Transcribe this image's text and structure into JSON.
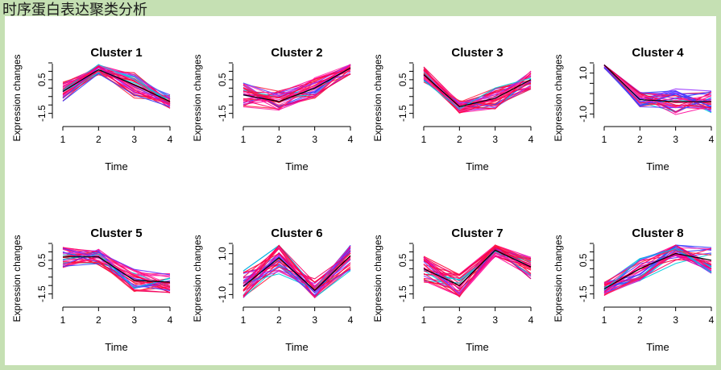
{
  "page_title": "时序蛋白表达聚类分析",
  "chart_data": [
    {
      "type": "line",
      "title": "Cluster 1",
      "xlabel": "Time",
      "ylabel": "Expression changes",
      "x": [
        1,
        2,
        3,
        4
      ],
      "xticks": [
        "1",
        "2",
        "3",
        "4"
      ],
      "yticks": [
        "-1.5",
        "0.5"
      ],
      "ytick_values": [
        -1.5,
        0.5
      ],
      "ylim": [
        -1.9,
        1.5
      ],
      "grid": false,
      "centroid": [
        -0.2,
        1.1,
        0.2,
        -0.8
      ],
      "spread": [
        0.9,
        0.4,
        1.0,
        0.5
      ]
    },
    {
      "type": "line",
      "title": "Cluster 2",
      "xlabel": "Time",
      "ylabel": "Expression changes",
      "x": [
        1,
        2,
        3,
        4
      ],
      "xticks": [
        "1",
        "2",
        "3",
        "4"
      ],
      "yticks": [
        "-1.5",
        "0.5"
      ],
      "ytick_values": [
        -1.5,
        0.5
      ],
      "ylim": [
        -1.9,
        1.5
      ],
      "grid": false,
      "centroid": [
        -0.4,
        -0.8,
        0.0,
        1.2
      ],
      "spread": [
        0.9,
        0.8,
        0.8,
        0.5
      ]
    },
    {
      "type": "line",
      "title": "Cluster 3",
      "xlabel": "Time",
      "ylabel": "Expression changes",
      "x": [
        1,
        2,
        3,
        4
      ],
      "xticks": [
        "1",
        "2",
        "3",
        "4"
      ],
      "yticks": [
        "-1.5",
        "0.5"
      ],
      "ytick_values": [
        -1.5,
        0.5
      ],
      "ylim": [
        -1.9,
        1.5
      ],
      "grid": false,
      "centroid": [
        0.8,
        -1.1,
        -0.6,
        0.5
      ],
      "spread": [
        0.6,
        0.5,
        0.8,
        0.7
      ]
    },
    {
      "type": "line",
      "title": "Cluster 4",
      "xlabel": "Time",
      "ylabel": "Expression changes",
      "x": [
        1,
        2,
        3,
        4
      ],
      "xticks": [
        "1",
        "2",
        "3",
        "4"
      ],
      "yticks": [
        "-1.0",
        "1.0"
      ],
      "ytick_values": [
        -1.0,
        1.0
      ],
      "ylim": [
        -1.3,
        1.5
      ],
      "grid": false,
      "centroid": [
        1.4,
        -0.3,
        -0.4,
        -0.4
      ],
      "spread": [
        0.2,
        0.5,
        0.8,
        0.7
      ]
    },
    {
      "type": "line",
      "title": "Cluster 5",
      "xlabel": "Time",
      "ylabel": "Expression changes",
      "x": [
        1,
        2,
        3,
        4
      ],
      "xticks": [
        "1",
        "2",
        "3",
        "4"
      ],
      "yticks": [
        "-1.5",
        "0.5"
      ],
      "ytick_values": [
        -1.5,
        0.5
      ],
      "ylim": [
        -1.9,
        1.5
      ],
      "grid": false,
      "centroid": [
        0.7,
        0.7,
        -0.7,
        -0.8
      ],
      "spread": [
        0.8,
        0.6,
        0.9,
        0.8
      ]
    },
    {
      "type": "line",
      "title": "Cluster 6",
      "xlabel": "Time",
      "ylabel": "Expression changes",
      "x": [
        1,
        2,
        3,
        4
      ],
      "xticks": [
        "1",
        "2",
        "3",
        "4"
      ],
      "yticks": [
        "-1.0",
        "1.0"
      ],
      "ytick_values": [
        -1.0,
        1.0
      ],
      "ylim": [
        -1.3,
        1.5
      ],
      "grid": false,
      "centroid": [
        -0.6,
        0.8,
        -0.8,
        0.9
      ],
      "spread": [
        1.0,
        1.0,
        0.8,
        1.0
      ]
    },
    {
      "type": "line",
      "title": "Cluster 7",
      "xlabel": "Time",
      "ylabel": "Expression changes",
      "x": [
        1,
        2,
        3,
        4
      ],
      "xticks": [
        "1",
        "2",
        "3",
        "4"
      ],
      "yticks": [
        "-1.5",
        "0.5"
      ],
      "ytick_values": [
        -1.5,
        0.5
      ],
      "ylim": [
        -1.9,
        1.5
      ],
      "grid": false,
      "centroid": [
        0.0,
        -1.0,
        1.1,
        0.1
      ],
      "spread": [
        1.0,
        0.9,
        0.5,
        0.9
      ]
    },
    {
      "type": "line",
      "title": "Cluster 8",
      "xlabel": "Time",
      "ylabel": "Expression changes",
      "x": [
        1,
        2,
        3,
        4
      ],
      "xticks": [
        "1",
        "2",
        "3",
        "4"
      ],
      "yticks": [
        "-1.5",
        "0.5"
      ],
      "ytick_values": [
        -1.5,
        0.5
      ],
      "ylim": [
        -1.9,
        1.5
      ],
      "grid": false,
      "centroid": [
        -1.2,
        0.0,
        0.9,
        0.5
      ],
      "spread": [
        0.5,
        0.9,
        0.8,
        1.0
      ]
    }
  ],
  "colors": {
    "background": "#c5e0b3",
    "panel": "#ffffff",
    "member_lines": [
      "#ff0033",
      "#ff0066",
      "#ee0055",
      "#ff2244",
      "#ff0099",
      "#ff33aa",
      "#6633ff",
      "#3344ff",
      "#00ccdd",
      "#9933ff"
    ],
    "centroid": "#000000"
  }
}
